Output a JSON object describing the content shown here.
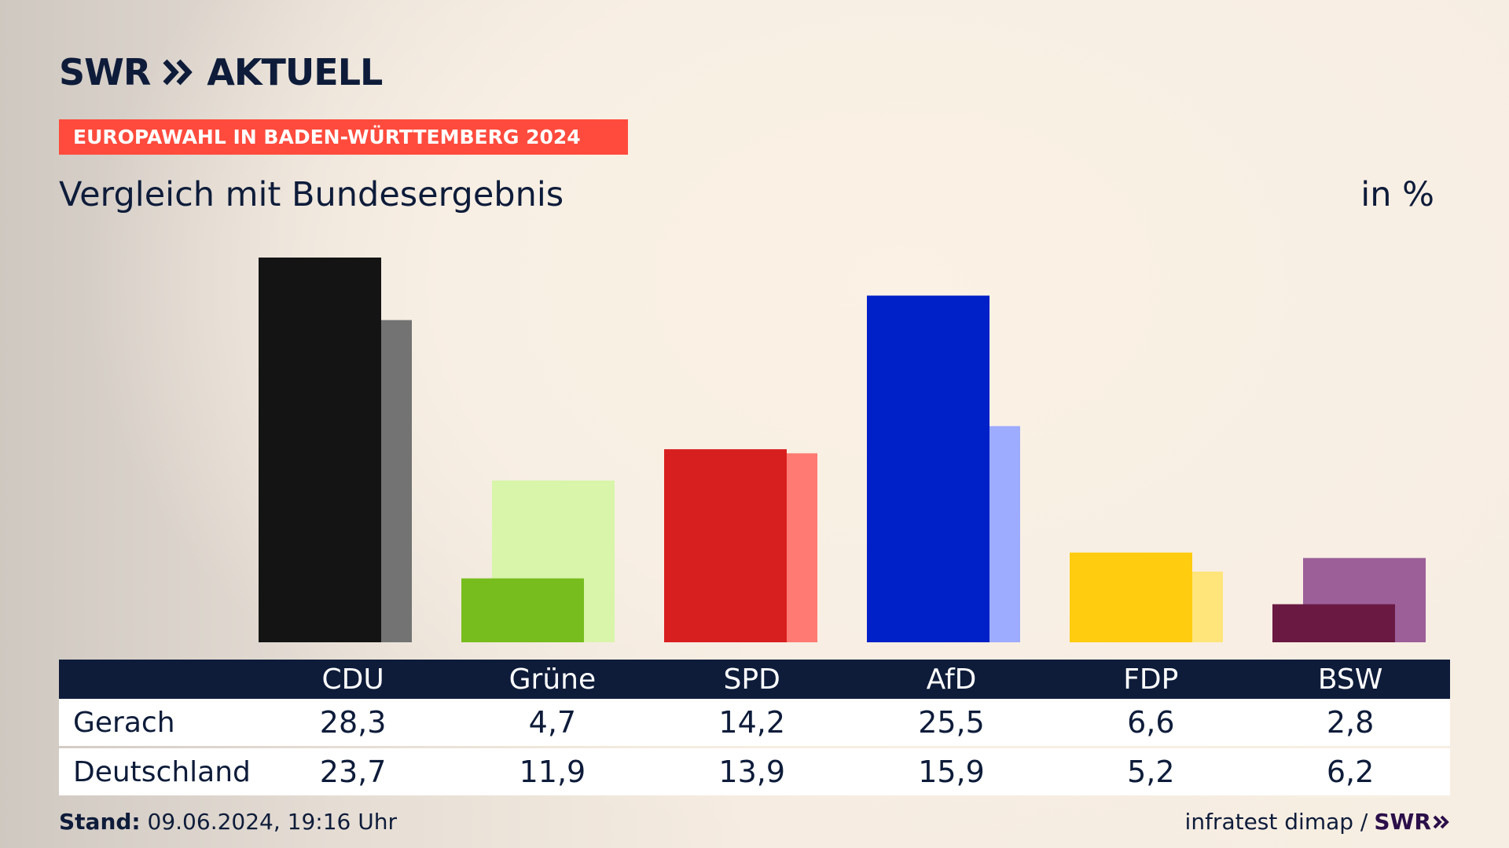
{
  "header": {
    "logo_left": "SWR",
    "logo_right": "AKTUELL",
    "banner": "EUROPAWAHL IN BADEN-WÜRTTEMBERG 2024",
    "subtitle": "Vergleich mit Bundesergebnis",
    "unit": "in %"
  },
  "colors": {
    "CDU": [
      "#141414",
      "#737373"
    ],
    "Grüne": [
      "#77bd1e",
      "#d8f5aa"
    ],
    "SPD": [
      "#d81f1f",
      "#ff7a72"
    ],
    "AfD": [
      "#0020c8",
      "#9eacff"
    ],
    "FDP": [
      "#ffcc0f",
      "#ffe57a"
    ],
    "BSW": [
      "#6a1942",
      "#9c5f98"
    ]
  },
  "chart_data": {
    "type": "bar",
    "categories": [
      "CDU",
      "Grüne",
      "SPD",
      "AfD",
      "FDP",
      "BSW"
    ],
    "series": [
      {
        "name": "Gerach",
        "values": [
          28.3,
          4.7,
          14.2,
          25.5,
          6.6,
          2.8
        ]
      },
      {
        "name": "Deutschland",
        "values": [
          23.7,
          11.9,
          13.9,
          15.9,
          5.2,
          6.2
        ]
      }
    ],
    "ylim": [
      0,
      30
    ]
  },
  "footer": {
    "stand_label": "Stand:",
    "stand_value": "09.06.2024, 19:16 Uhr",
    "source": "infratest dimap /",
    "source_logo": "SWR"
  }
}
